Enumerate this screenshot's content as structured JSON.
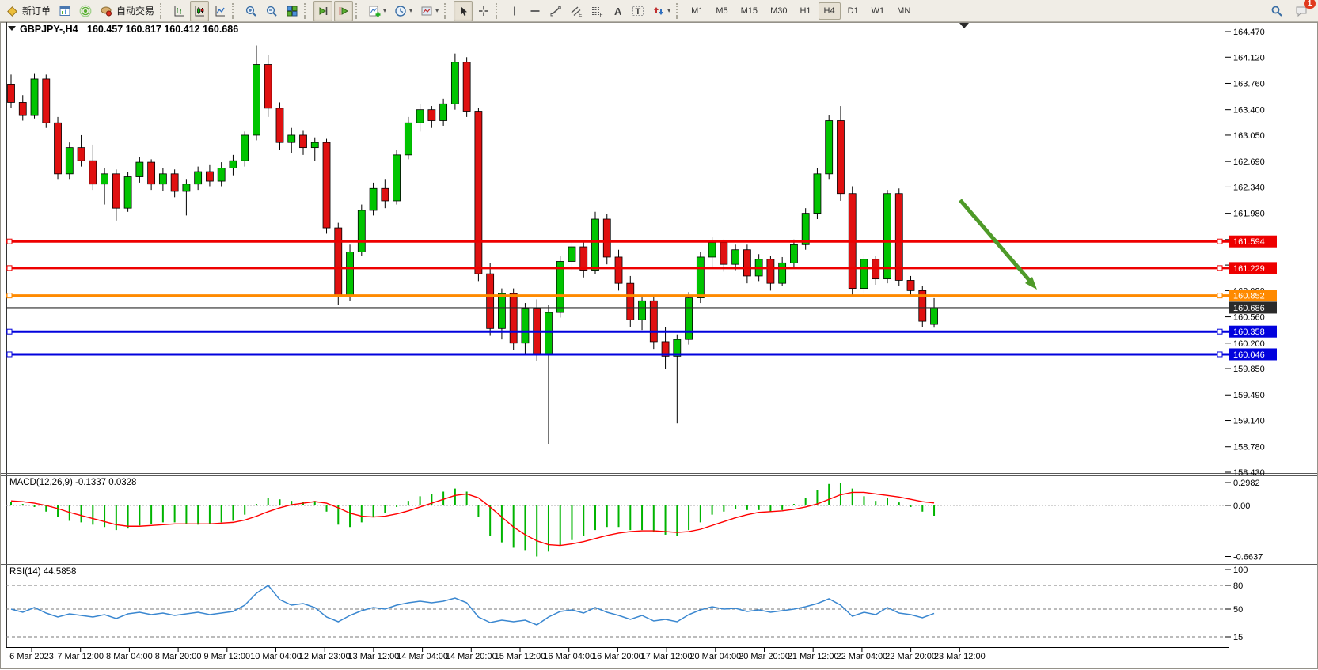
{
  "toolbar": {
    "items": [
      {
        "icon": "new-order-icon",
        "label": "新订单"
      },
      {
        "icon": "chart-window-icon"
      },
      {
        "icon": "signal-icon"
      },
      {
        "icon": "autotrading-icon",
        "label": "自动交易"
      },
      {
        "sep": true
      },
      {
        "icon": "bar-chart-icon"
      },
      {
        "icon": "candlestick-chart-icon",
        "pressed": true
      },
      {
        "icon": "line-chart-icon"
      },
      {
        "sep": true
      },
      {
        "icon": "zoom-in-icon"
      },
      {
        "icon": "zoom-out-icon"
      },
      {
        "icon": "tile-windows-icon"
      },
      {
        "sep": true
      },
      {
        "icon": "auto-scroll-icon",
        "pressed": true
      },
      {
        "icon": "chart-shift-icon",
        "pressed": true
      },
      {
        "sep": true
      },
      {
        "icon": "indicators-icon",
        "dropdown": true
      },
      {
        "icon": "periods-icon",
        "dropdown": true
      },
      {
        "icon": "templates-icon",
        "dropdown": true
      },
      {
        "sep": true
      },
      {
        "icon": "cursor-icon",
        "pressed": true
      },
      {
        "icon": "crosshair-icon"
      },
      {
        "sep": true
      },
      {
        "icon": "vertical-line-icon"
      },
      {
        "icon": "horizontal-line-icon"
      },
      {
        "icon": "trendline-icon"
      },
      {
        "icon": "channel-icon"
      },
      {
        "icon": "fibonacci-icon"
      },
      {
        "icon": "text-icon"
      },
      {
        "icon": "text-label-icon"
      },
      {
        "icon": "arrows-icon",
        "dropdown": true
      },
      {
        "sep": true
      }
    ],
    "timeframes": [
      "M1",
      "M5",
      "M15",
      "M30",
      "H1",
      "H4",
      "D1",
      "W1",
      "MN"
    ],
    "active_timeframe": "H4",
    "notification_count": "1"
  },
  "chart": {
    "title": {
      "symbol": "GBPJPY-,H4",
      "ohlc": "160.457 160.817 160.412 160.686"
    },
    "price_axis_ticks": [
      "164.470",
      "164.120",
      "163.760",
      "163.400",
      "163.050",
      "162.690",
      "162.340",
      "161.980",
      "161.620",
      "161.270",
      "160.920",
      "160.560",
      "160.200",
      "159.850",
      "159.490",
      "159.140",
      "158.780",
      "158.430"
    ],
    "time_axis_ticks": [
      "6 Mar 2023",
      "7 Mar 12:00",
      "8 Mar 04:00",
      "8 Mar 20:00",
      "9 Mar 12:00",
      "10 Mar 04:00",
      "12 Mar 23:00",
      "13 Mar 12:00",
      "14 Mar 04:00",
      "14 Mar 20:00",
      "15 Mar 12:00",
      "16 Mar 04:00",
      "16 Mar 20:00",
      "17 Mar 12:00",
      "20 Mar 04:00",
      "20 Mar 20:00",
      "21 Mar 12:00",
      "22 Mar 04:00",
      "22 Mar 20:00",
      "23 Mar 12:00"
    ],
    "colors": {
      "candle_up": "#00c400",
      "candle_down": "#e01010",
      "candle_outline": "#000000",
      "line_red": "#ee0000",
      "line_orange": "#ff8a00",
      "line_blue": "#0202dd",
      "current_price": "#2a2a2a",
      "macd_hist": "#00b400",
      "macd_signal": "#ff0000",
      "rsi_line": "#3a87d0",
      "arrow_green": "#4e9a28"
    }
  },
  "chart_data": {
    "type": "candlestick",
    "symbol": "GBPJPY-",
    "timeframe": "H4",
    "ohlc_readout": {
      "open": "160.457",
      "high": "160.817",
      "low": "160.412",
      "close": "160.686"
    },
    "candles": [
      [
        163.75,
        163.88,
        163.42,
        163.5
      ],
      [
        163.5,
        163.6,
        163.25,
        163.32
      ],
      [
        163.32,
        163.9,
        163.28,
        163.82
      ],
      [
        163.82,
        163.88,
        163.15,
        163.22
      ],
      [
        163.22,
        163.3,
        162.45,
        162.52
      ],
      [
        162.52,
        162.95,
        162.45,
        162.88
      ],
      [
        162.88,
        163.05,
        162.62,
        162.7
      ],
      [
        162.7,
        162.92,
        162.3,
        162.38
      ],
      [
        162.38,
        162.6,
        162.1,
        162.52
      ],
      [
        162.52,
        162.58,
        161.88,
        162.05
      ],
      [
        162.05,
        162.55,
        162.0,
        162.48
      ],
      [
        162.48,
        162.75,
        162.4,
        162.68
      ],
      [
        162.68,
        162.72,
        162.3,
        162.38
      ],
      [
        162.38,
        162.6,
        162.28,
        162.52
      ],
      [
        162.52,
        162.58,
        162.2,
        162.28
      ],
      [
        162.28,
        162.45,
        161.95,
        162.38
      ],
      [
        162.38,
        162.62,
        162.3,
        162.55
      ],
      [
        162.55,
        162.65,
        162.35,
        162.42
      ],
      [
        162.42,
        162.68,
        162.35,
        162.6
      ],
      [
        162.6,
        162.78,
        162.5,
        162.7
      ],
      [
        162.7,
        163.1,
        162.62,
        163.05
      ],
      [
        163.05,
        164.28,
        162.98,
        164.02
      ],
      [
        164.02,
        164.15,
        163.3,
        163.42
      ],
      [
        163.42,
        163.5,
        162.85,
        162.95
      ],
      [
        162.95,
        163.15,
        162.8,
        163.05
      ],
      [
        163.05,
        163.12,
        162.78,
        162.88
      ],
      [
        162.88,
        163.02,
        162.7,
        162.95
      ],
      [
        162.95,
        163.0,
        161.7,
        161.78
      ],
      [
        161.78,
        161.85,
        160.72,
        160.85
      ],
      [
        160.85,
        161.55,
        160.78,
        161.45
      ],
      [
        161.45,
        162.1,
        161.4,
        162.02
      ],
      [
        162.02,
        162.4,
        161.95,
        162.32
      ],
      [
        162.32,
        162.45,
        162.05,
        162.15
      ],
      [
        162.15,
        162.85,
        162.1,
        162.78
      ],
      [
        162.78,
        163.3,
        162.72,
        163.22
      ],
      [
        163.22,
        163.48,
        163.1,
        163.4
      ],
      [
        163.4,
        163.45,
        163.15,
        163.25
      ],
      [
        163.25,
        163.55,
        163.18,
        163.48
      ],
      [
        163.48,
        164.17,
        163.4,
        164.05
      ],
      [
        164.05,
        164.12,
        163.3,
        163.38
      ],
      [
        163.38,
        163.42,
        161.05,
        161.15
      ],
      [
        161.15,
        161.3,
        160.3,
        160.4
      ],
      [
        160.4,
        160.95,
        160.25,
        160.88
      ],
      [
        160.88,
        160.95,
        160.1,
        160.2
      ],
      [
        160.2,
        160.75,
        160.05,
        160.68
      ],
      [
        160.68,
        160.8,
        159.95,
        160.05
      ],
      [
        160.05,
        160.72,
        158.82,
        160.62
      ],
      [
        160.62,
        161.4,
        160.55,
        161.32
      ],
      [
        161.32,
        161.6,
        161.2,
        161.52
      ],
      [
        161.52,
        161.58,
        161.1,
        161.2
      ],
      [
        161.2,
        162.0,
        161.15,
        161.9
      ],
      [
        161.9,
        161.97,
        161.28,
        161.38
      ],
      [
        161.38,
        161.48,
        160.92,
        161.02
      ],
      [
        161.02,
        161.12,
        160.42,
        160.52
      ],
      [
        160.52,
        160.85,
        160.38,
        160.78
      ],
      [
        160.78,
        160.84,
        160.12,
        160.22
      ],
      [
        160.22,
        160.42,
        159.85,
        160.02
      ],
      [
        160.02,
        160.32,
        159.1,
        160.25
      ],
      [
        160.25,
        160.9,
        160.18,
        160.82
      ],
      [
        160.82,
        161.45,
        160.75,
        161.38
      ],
      [
        161.38,
        161.65,
        161.25,
        161.58
      ],
      [
        161.58,
        161.62,
        161.18,
        161.28
      ],
      [
        161.28,
        161.55,
        161.2,
        161.48
      ],
      [
        161.48,
        161.55,
        161.02,
        161.12
      ],
      [
        161.12,
        161.42,
        161.05,
        161.35
      ],
      [
        161.35,
        161.4,
        160.92,
        161.02
      ],
      [
        161.02,
        161.38,
        160.98,
        161.3
      ],
      [
        161.3,
        161.62,
        161.24,
        161.55
      ],
      [
        161.55,
        162.05,
        161.48,
        161.98
      ],
      [
        161.98,
        162.6,
        161.9,
        162.52
      ],
      [
        162.52,
        163.32,
        162.45,
        163.25
      ],
      [
        163.25,
        163.45,
        162.15,
        162.25
      ],
      [
        162.25,
        162.35,
        160.85,
        160.95
      ],
      [
        160.95,
        161.42,
        160.88,
        161.35
      ],
      [
        161.35,
        161.4,
        161.0,
        161.08
      ],
      [
        161.08,
        162.3,
        161.02,
        162.25
      ],
      [
        162.25,
        162.32,
        160.98,
        161.06
      ],
      [
        161.06,
        161.12,
        160.84,
        160.92
      ],
      [
        160.92,
        160.98,
        160.42,
        160.5
      ],
      [
        160.457,
        160.817,
        160.412,
        160.686
      ]
    ],
    "overlays": {
      "hlines": [
        {
          "price": 161.594,
          "label": "161.594",
          "color": "red",
          "thick": true
        },
        {
          "price": 161.229,
          "label": "161.229",
          "color": "red",
          "thick": true
        },
        {
          "price": 160.852,
          "label": "160.852",
          "color": "orange",
          "thick": true
        },
        {
          "price": 160.686,
          "label": "160.686",
          "color": "current",
          "thick": false
        },
        {
          "price": 160.358,
          "label": "160.358",
          "color": "blue",
          "thick": true
        },
        {
          "price": 160.046,
          "label": "160.046",
          "color": "blue",
          "thick": true
        }
      ],
      "arrow": {
        "direction": "down-right",
        "from_price": 162.15,
        "to_price": 160.9
      }
    },
    "macd": {
      "label": "MACD(12,26,9) -0.1337 0.0328",
      "params": "(12,26,9)",
      "value_main": "-0.1337",
      "value_signal": "0.0328",
      "scale": [
        "0.2982",
        "0.00",
        "-0.6637"
      ],
      "histogram": [
        0.05,
        0.02,
        -0.02,
        -0.08,
        -0.15,
        -0.2,
        -0.22,
        -0.25,
        -0.28,
        -0.32,
        -0.3,
        -0.26,
        -0.24,
        -0.22,
        -0.22,
        -0.24,
        -0.25,
        -0.24,
        -0.22,
        -0.2,
        -0.12,
        0.02,
        0.1,
        0.08,
        0.06,
        0.05,
        0.06,
        -0.08,
        -0.25,
        -0.28,
        -0.22,
        -0.15,
        -0.1,
        -0.02,
        0.06,
        0.12,
        0.15,
        0.18,
        0.22,
        0.18,
        -0.15,
        -0.4,
        -0.48,
        -0.55,
        -0.58,
        -0.6637,
        -0.6,
        -0.52,
        -0.45,
        -0.4,
        -0.32,
        -0.28,
        -0.28,
        -0.32,
        -0.32,
        -0.35,
        -0.38,
        -0.4,
        -0.32,
        -0.22,
        -0.12,
        -0.08,
        -0.05,
        -0.06,
        -0.06,
        -0.08,
        -0.06,
        0.02,
        0.1,
        0.2,
        0.28,
        0.2982,
        0.22,
        0.12,
        0.06,
        0.1,
        0.04,
        -0.02,
        -0.08,
        -0.1337
      ],
      "signal": [
        0.06,
        0.05,
        0.03,
        0.0,
        -0.04,
        -0.09,
        -0.13,
        -0.17,
        -0.21,
        -0.25,
        -0.27,
        -0.27,
        -0.26,
        -0.25,
        -0.24,
        -0.24,
        -0.24,
        -0.24,
        -0.23,
        -0.22,
        -0.19,
        -0.14,
        -0.08,
        -0.03,
        0.01,
        0.03,
        0.05,
        0.03,
        -0.03,
        -0.1,
        -0.14,
        -0.15,
        -0.14,
        -0.11,
        -0.07,
        -0.02,
        0.03,
        0.08,
        0.13,
        0.15,
        0.1,
        -0.02,
        -0.15,
        -0.28,
        -0.38,
        -0.46,
        -0.51,
        -0.52,
        -0.5,
        -0.47,
        -0.43,
        -0.39,
        -0.36,
        -0.34,
        -0.33,
        -0.33,
        -0.34,
        -0.35,
        -0.34,
        -0.31,
        -0.26,
        -0.21,
        -0.16,
        -0.12,
        -0.09,
        -0.08,
        -0.07,
        -0.05,
        -0.02,
        0.02,
        0.08,
        0.14,
        0.17,
        0.17,
        0.15,
        0.13,
        0.11,
        0.08,
        0.05,
        0.0328
      ]
    },
    "rsi": {
      "label": "RSI(14) 44.5858",
      "value": "44.5858",
      "scale": [
        "100",
        "80",
        "50",
        "15"
      ],
      "levels": [
        80,
        50,
        15
      ],
      "values": [
        50,
        46,
        52,
        45,
        40,
        44,
        42,
        40,
        43,
        38,
        44,
        46,
        43,
        45,
        42,
        44,
        46,
        43,
        45,
        47,
        55,
        70,
        80,
        62,
        55,
        57,
        52,
        40,
        34,
        42,
        48,
        52,
        50,
        55,
        58,
        60,
        58,
        60,
        64,
        58,
        40,
        33,
        36,
        34,
        36,
        30,
        40,
        47,
        49,
        45,
        52,
        46,
        42,
        37,
        42,
        35,
        37,
        34,
        43,
        49,
        53,
        50,
        51,
        47,
        49,
        46,
        48,
        50,
        53,
        57,
        63,
        55,
        41,
        46,
        43,
        52,
        45,
        43,
        39,
        44.5858
      ]
    }
  }
}
